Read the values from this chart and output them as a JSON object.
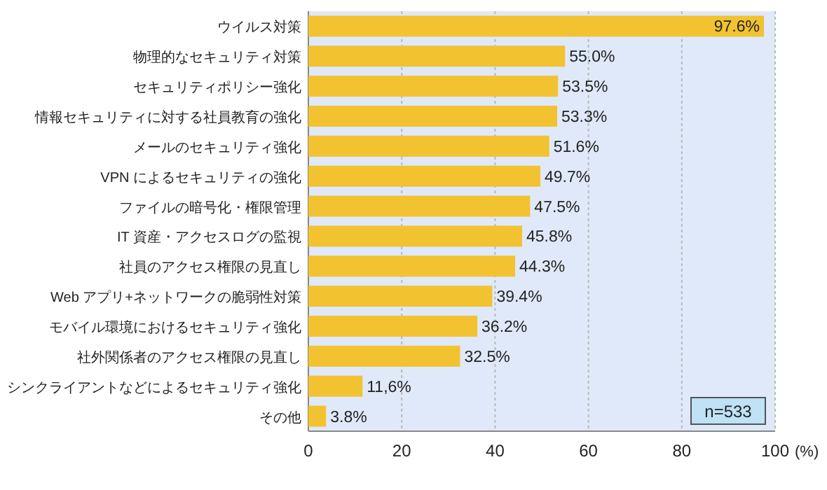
{
  "chart_data": {
    "type": "bar",
    "orientation": "horizontal",
    "xlabel": "(%)",
    "categories": [
      "ウイルス対策",
      "物理的なセキュリティ対策",
      "セキュリティポリシー強化",
      "情報セキュリティに対する社員教育の強化",
      "メールのセキュリティ強化",
      "VPN によるセキュリティの強化",
      "ファイルの暗号化・権限管理",
      "IT 資産・アクセスログの監視",
      "社員のアクセス権限の見直し",
      "Web アプリ+ネットワークの脆弱性対策",
      "モバイル環境におけるセキュリティ強化",
      "社外関係者のアクセス権限の見直し",
      "シンクライアントなどによるセキュリティ強化",
      "その他"
    ],
    "values": [
      97.6,
      55.0,
      53.5,
      53.3,
      51.6,
      49.7,
      47.5,
      45.8,
      44.3,
      39.4,
      36.2,
      32.5,
      11.6,
      3.8
    ],
    "value_labels": [
      "97.6%",
      "55.0%",
      "53.5%",
      "53.3%",
      "51.6%",
      "49.7%",
      "47.5%",
      "45.8%",
      "44.3%",
      "39.4%",
      "36.2%",
      "32.5%",
      "11,6%",
      "3.8%"
    ],
    "color": "#f2c230",
    "xlim": [
      0,
      100
    ],
    "xticks": [
      0,
      20,
      40,
      60,
      80,
      100
    ],
    "grid": "x",
    "annotations": [
      "n=533"
    ]
  }
}
